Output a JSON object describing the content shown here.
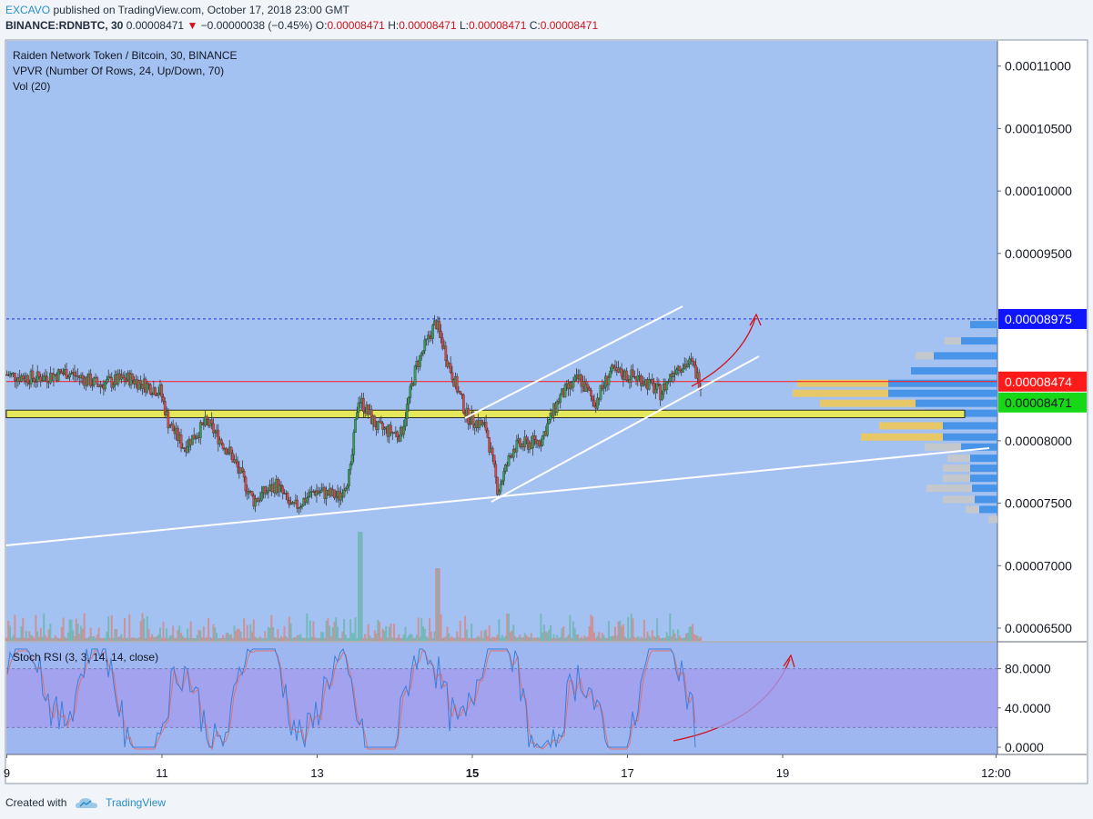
{
  "header": {
    "author": "EXCAVO",
    "published": "published on TradingView.com, October 17, 2018 23:00 GMT",
    "symbol": "BINANCE:RDNBTC, 30",
    "last_price": "0.00008471",
    "change_arrow": "▼",
    "change": "−0.00000038 (−0.45%)",
    "o_label": "O:",
    "o_value": "0.00008471",
    "h_label": "H:",
    "h_value": "0.00008471",
    "l_label": "L:",
    "l_value": "0.00008471",
    "c_label": "C:",
    "c_value": "0.00008471"
  },
  "legend": {
    "title": "Raiden Network Token / Bitcoin, 30, BINANCE",
    "vpvr": "VPVR (Number Of Rows, 24, Up/Down, 70)",
    "vol": "Vol (20)",
    "stoch": "Stoch RSI (3, 3, 14, 14, close)"
  },
  "footer": {
    "created_with": "Created with",
    "brand": "TradingView"
  },
  "colors": {
    "chart_bg": "#a3c2f2",
    "stoch_bg": "#9fb7f0",
    "stoch_band": "#a39cee",
    "up": "#3a9a5b",
    "down": "#cf4a4a",
    "price_line_red": "#ff1a1a",
    "label_blue": "#0f15ff",
    "label_red": "#ff1a1a",
    "label_green": "#16d816",
    "highlight_band": "#e5e85a",
    "trend_line": "#ffffff",
    "vpvr_up": "#3d8fe8",
    "vpvr_down": "#f0c85a",
    "vpvr_gray": "#c8c8c8",
    "arrow": "#d0131c",
    "rsi_k": "#3d7fd8",
    "rsi_d": "#e07070"
  },
  "chart_data": {
    "type": "candlestick",
    "price_axis": {
      "ticks": [
        "0.00011000",
        "0.00010500",
        "0.00010000",
        "0.00009500",
        "0.00008000",
        "0.00007500",
        "0.00007000",
        "0.00006500"
      ],
      "tick_values": [
        0.00011,
        0.000105,
        0.0001,
        9.5e-05,
        8e-05,
        7.5e-05,
        7e-05,
        6.5e-05
      ],
      "range": [
        6.4e-05,
        0.0001115
      ]
    },
    "time_axis": {
      "ticks": [
        "9",
        "11",
        "13",
        "15",
        "17",
        "19",
        "12:00"
      ],
      "bold_tick": "15"
    },
    "price_labels": [
      {
        "value": 8.975e-05,
        "text": "0.00008975",
        "color": "blue"
      },
      {
        "value": 8.474e-05,
        "text": "0.00008474",
        "color": "red"
      },
      {
        "value": 8.471e-05,
        "text": "0.00008471",
        "color": "green"
      }
    ],
    "dashed_high_line": 8.975e-05,
    "red_price_line": 8.474e-05,
    "highlight_zone": [
      8.185e-05,
      8.245e-05
    ],
    "price_path": [
      [
        9.0,
        8.53e-05
      ],
      [
        9.4,
        8.5e-05
      ],
      [
        9.8,
        8.55e-05
      ],
      [
        10.2,
        8.45e-05
      ],
      [
        10.6,
        8.5e-05
      ],
      [
        11.0,
        8.4e-05
      ],
      [
        11.1,
        8.15e-05
      ],
      [
        11.3,
        7.95e-05
      ],
      [
        11.6,
        8.15e-05
      ],
      [
        11.9,
        7.9e-05
      ],
      [
        12.2,
        7.52e-05
      ],
      [
        12.5,
        7.65e-05
      ],
      [
        12.7,
        7.45e-05
      ],
      [
        13.0,
        7.6e-05
      ],
      [
        13.3,
        7.55e-05
      ],
      [
        13.45,
        7.75e-05
      ],
      [
        13.55,
        8.35e-05
      ],
      [
        13.8,
        8.1e-05
      ],
      [
        14.1,
        8.05e-05
      ],
      [
        14.3,
        8.6e-05
      ],
      [
        14.55,
        8.95e-05
      ],
      [
        14.75,
        8.55e-05
      ],
      [
        14.95,
        8.2e-05
      ],
      [
        15.2,
        8.1e-05
      ],
      [
        15.35,
        7.6e-05
      ],
      [
        15.55,
        7.95e-05
      ],
      [
        15.9,
        8e-05
      ],
      [
        16.15,
        8.35e-05
      ],
      [
        16.4,
        8.5e-05
      ],
      [
        16.6,
        8.3e-05
      ],
      [
        16.8,
        8.55e-05
      ],
      [
        17.2,
        8.5e-05
      ],
      [
        17.45,
        8.38e-05
      ],
      [
        17.65,
        8.6e-05
      ],
      [
        17.85,
        8.62e-05
      ],
      [
        17.95,
        8.47e-05
      ]
    ],
    "stoch_rsi": {
      "axis_ticks": [
        "80.0000",
        "40.0000",
        "0.0000"
      ],
      "tick_values": [
        80,
        40,
        0
      ],
      "band": [
        20,
        80
      ],
      "last_value": 0
    }
  }
}
